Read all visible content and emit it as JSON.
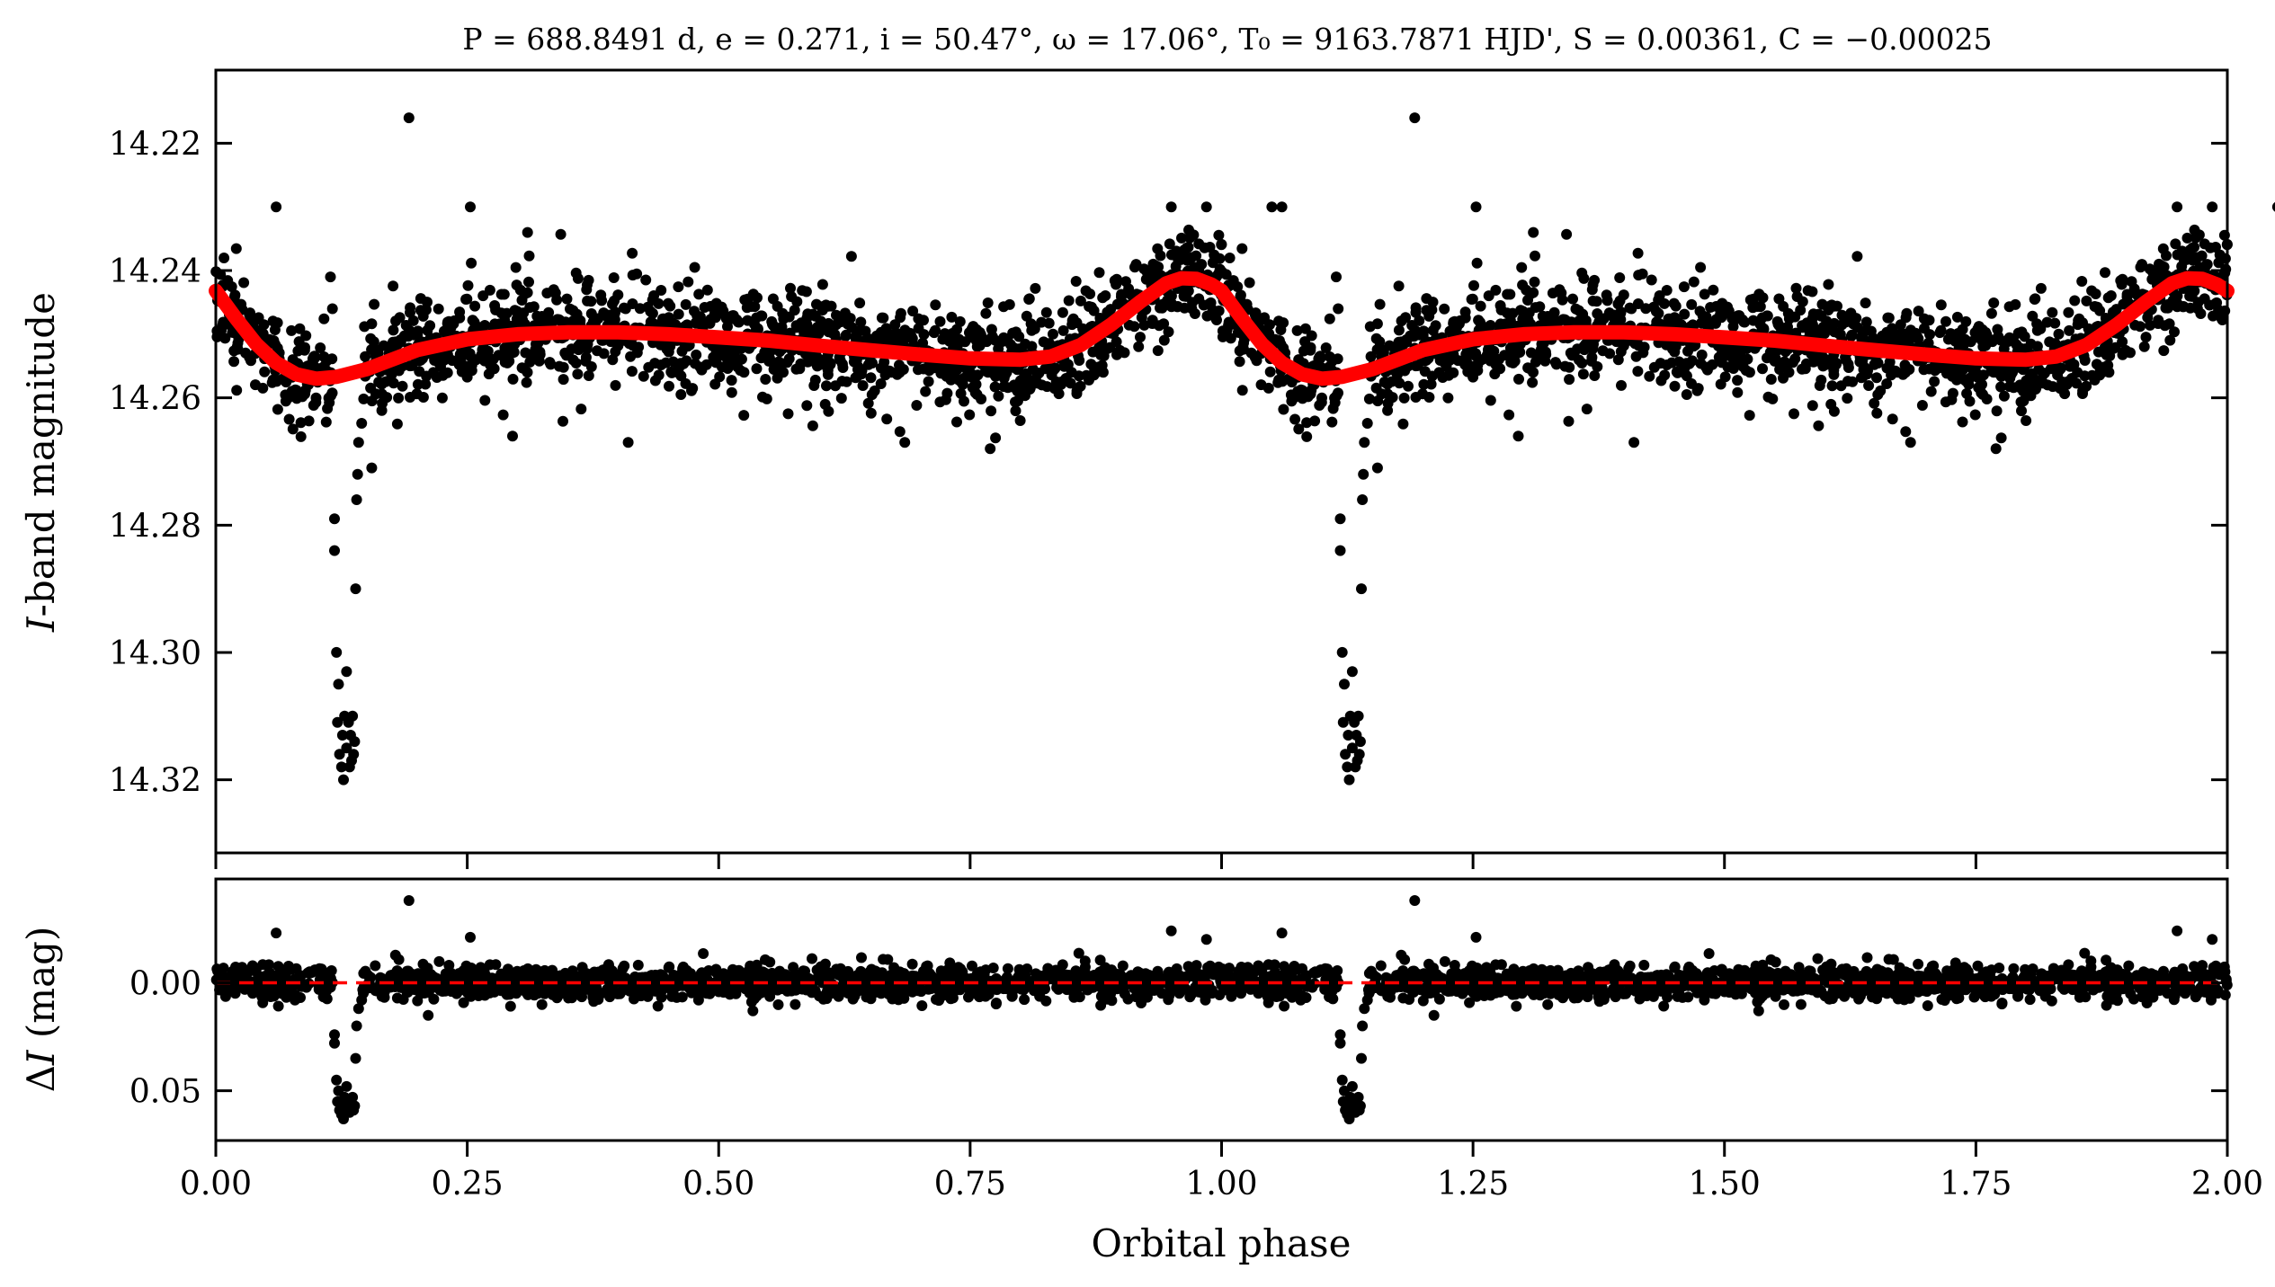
{
  "chart_data": {
    "type": "scatter",
    "title": "P = 688.8491 d, e = 0.271, i = 50.47°, ω = 17.06°, T₀ = 9163.7871 HJD', S = 0.00361, C = −0.00025",
    "title_parts": {
      "P": "688.8491",
      "P_unit": "d",
      "e": "0.271",
      "i": "50.47°",
      "omega": "17.06°",
      "T0": "9163.7871",
      "T0_unit": "HJD'",
      "S": "0.00361",
      "C": "−0.00025"
    },
    "xlabel": "Orbital phase",
    "xlim": [
      0,
      2
    ],
    "xticks": [
      0,
      0.25,
      0.5,
      0.75,
      1.0,
      1.25,
      1.5,
      1.75,
      2.0
    ],
    "xtick_labels": [
      "0.00",
      "0.25",
      "0.50",
      "0.75",
      "1.00",
      "1.25",
      "1.50",
      "1.75",
      "2.00"
    ],
    "panels": [
      {
        "id": "light-curve",
        "ylabel": "I-band magnitude",
        "ylabel_italic": "I",
        "ylabel_rest": "-band magnitude",
        "ylim": [
          14.3315,
          14.2085
        ],
        "y_inverted": true,
        "yticks": [
          14.22,
          14.24,
          14.26,
          14.28,
          14.3,
          14.32
        ],
        "ytick_labels": [
          "14.22",
          "14.24",
          "14.26",
          "14.28",
          "14.30",
          "14.32"
        ],
        "series": [
          {
            "name": "observations",
            "kind": "scatter",
            "color": "#000000",
            "description": "dense scatter of I-band photometry, repeated for phase 0–1 and 1–2",
            "baseline_mean_points": [
              [
                0.0,
                14.244
              ],
              [
                0.03,
                14.249
              ],
              [
                0.1,
                14.257
              ],
              [
                0.15,
                14.254
              ],
              [
                0.25,
                14.251
              ],
              [
                0.35,
                14.25
              ],
              [
                0.45,
                14.25
              ],
              [
                0.55,
                14.251
              ],
              [
                0.65,
                14.252
              ],
              [
                0.75,
                14.254
              ],
              [
                0.82,
                14.254
              ],
              [
                0.88,
                14.249
              ],
              [
                0.93,
                14.244
              ],
              [
                0.975,
                14.241
              ],
              [
                1.0,
                14.244
              ]
            ],
            "scatter_sigma": 0.004,
            "outliers": [
              [
                0.06,
                14.23
              ],
              [
                0.192,
                14.216
              ],
              [
                0.253,
                14.23
              ],
              [
                0.295,
                14.266
              ],
              [
                0.31,
                14.234
              ],
              [
                0.41,
                14.267
              ],
              [
                0.685,
                14.267
              ],
              [
                0.77,
                14.268
              ],
              [
                0.95,
                14.23
              ],
              [
                0.985,
                14.23
              ],
              [
                1.05,
                14.23
              ]
            ],
            "eclipse_points": [
              [
                0.118,
                14.279
              ],
              [
                0.118,
                14.284
              ],
              [
                0.12,
                14.3
              ],
              [
                0.122,
                14.305
              ],
              [
                0.121,
                14.311
              ],
              [
                0.123,
                14.316
              ],
              [
                0.125,
                14.318
              ],
              [
                0.127,
                14.32
              ],
              [
                0.126,
                14.313
              ],
              [
                0.128,
                14.31
              ],
              [
                0.13,
                14.303
              ],
              [
                0.13,
                14.315
              ],
              [
                0.132,
                14.311
              ],
              [
                0.133,
                14.318
              ],
              [
                0.134,
                14.313
              ],
              [
                0.135,
                14.317
              ],
              [
                0.136,
                14.31
              ],
              [
                0.137,
                14.316
              ],
              [
                0.138,
                14.314
              ],
              [
                0.139,
                14.29
              ],
              [
                0.14,
                14.276
              ],
              [
                0.141,
                14.272
              ],
              [
                0.142,
                14.267
              ],
              [
                0.145,
                14.264
              ],
              [
                0.114,
                14.241
              ],
              [
                0.116,
                14.246
              ],
              [
                0.155,
                14.271
              ],
              [
                0.165,
                14.262
              ]
            ]
          },
          {
            "name": "model",
            "kind": "line",
            "color": "#ff0000",
            "points": [
              [
                0.0,
                14.2432
              ],
              [
                0.02,
                14.2475
              ],
              [
                0.04,
                14.2515
              ],
              [
                0.06,
                14.2545
              ],
              [
                0.08,
                14.2563
              ],
              [
                0.1,
                14.257
              ],
              [
                0.12,
                14.2567
              ],
              [
                0.15,
                14.2555
              ],
              [
                0.2,
                14.2525
              ],
              [
                0.25,
                14.2508
              ],
              [
                0.3,
                14.25
              ],
              [
                0.35,
                14.2497
              ],
              [
                0.4,
                14.2497
              ],
              [
                0.45,
                14.25
              ],
              [
                0.5,
                14.2505
              ],
              [
                0.55,
                14.251
              ],
              [
                0.6,
                14.2518
              ],
              [
                0.65,
                14.2525
              ],
              [
                0.7,
                14.2532
              ],
              [
                0.75,
                14.2538
              ],
              [
                0.8,
                14.254
              ],
              [
                0.83,
                14.2535
              ],
              [
                0.86,
                14.2517
              ],
              [
                0.89,
                14.2485
              ],
              [
                0.92,
                14.2448
              ],
              [
                0.945,
                14.242
              ],
              [
                0.96,
                14.2412
              ],
              [
                0.975,
                14.2413
              ],
              [
                0.99,
                14.2422
              ],
              [
                1.0,
                14.2432
              ]
            ]
          }
        ]
      },
      {
        "id": "residuals",
        "ylabel": "ΔI (mag)",
        "ylabel_delta": "Δ",
        "ylabel_italic": "I",
        "ylabel_rest": " (mag)",
        "ylim": [
          0.073,
          -0.048
        ],
        "y_inverted": true,
        "yticks": [
          0.0,
          0.05
        ],
        "ytick_labels": [
          "0.00",
          "0.05"
        ],
        "series": [
          {
            "name": "residuals",
            "kind": "scatter",
            "color": "#000000",
            "scatter_sigma": 0.004,
            "outliers": [
              [
                0.06,
                -0.023
              ],
              [
                0.192,
                -0.038
              ],
              [
                0.253,
                -0.021
              ],
              [
                0.95,
                -0.024
              ],
              [
                0.985,
                -0.02
              ]
            ],
            "eclipse_points": [
              [
                0.118,
                0.024
              ],
              [
                0.118,
                0.028
              ],
              [
                0.12,
                0.045
              ],
              [
                0.122,
                0.05
              ],
              [
                0.121,
                0.055
              ],
              [
                0.123,
                0.059
              ],
              [
                0.125,
                0.061
              ],
              [
                0.127,
                0.063
              ],
              [
                0.126,
                0.057
              ],
              [
                0.128,
                0.053
              ],
              [
                0.13,
                0.048
              ],
              [
                0.13,
                0.058
              ],
              [
                0.132,
                0.055
              ],
              [
                0.133,
                0.06
              ],
              [
                0.134,
                0.056
              ],
              [
                0.135,
                0.058
              ],
              [
                0.136,
                0.053
              ],
              [
                0.137,
                0.059
              ],
              [
                0.138,
                0.057
              ],
              [
                0.139,
                0.035
              ],
              [
                0.14,
                0.02
              ],
              [
                0.142,
                0.012
              ],
              [
                0.145,
                0.008
              ]
            ]
          },
          {
            "name": "zero-line",
            "kind": "dashed-line",
            "color": "#ff0000",
            "y": 0.0
          }
        ]
      }
    ]
  }
}
